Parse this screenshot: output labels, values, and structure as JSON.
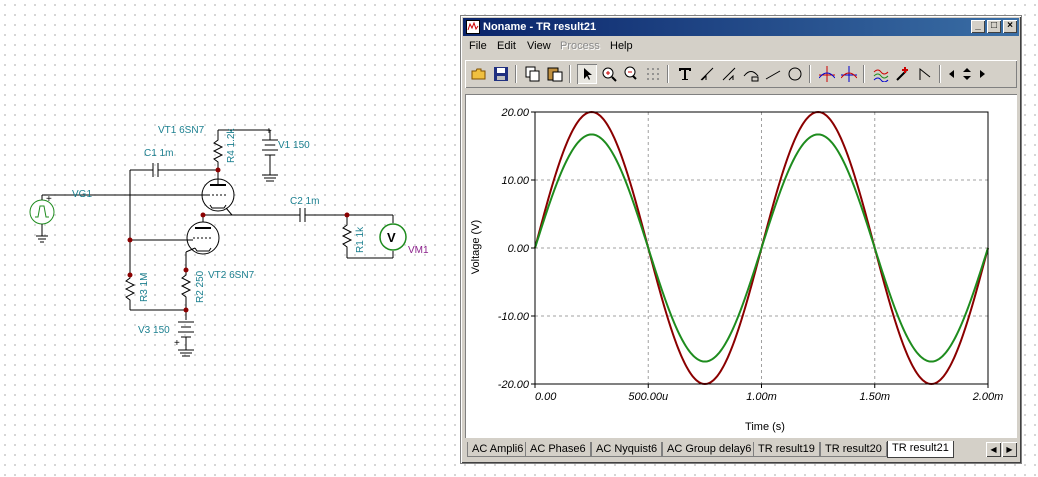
{
  "schematic": {
    "labels": {
      "vt1": "VT1 6SN7",
      "r4": "R4 1.2k",
      "v1": "V1 150",
      "c1": "C1 1m",
      "vg1": "VG1",
      "c2": "C2 1m",
      "r1": "R1 1k",
      "vm1": "VM1",
      "r3": "R3 1M",
      "r2": "R2 250",
      "vt2": "VT2 6SN7",
      "v3": "V3 150"
    },
    "plus_sign": "+",
    "meter_symbol": "V"
  },
  "window": {
    "title": "Noname - TR result21",
    "controls": {
      "minimize": "_",
      "maximize": "□",
      "close": "×"
    },
    "menu": [
      {
        "label": "File",
        "enabled": true
      },
      {
        "label": "Edit",
        "enabled": true
      },
      {
        "label": "View",
        "enabled": true
      },
      {
        "label": "Process",
        "enabled": false
      },
      {
        "label": "Help",
        "enabled": true
      }
    ],
    "toolbar": [
      "open-folder-icon",
      "save-icon",
      "copy-icon",
      "paste-icon",
      "pointer-icon",
      "zoom-in-icon",
      "zoom-100-icon",
      "grid-icon",
      "text-icon",
      "cursor-tool-a-icon",
      "cursor-tool-b-icon",
      "measure-icon",
      "line-icon",
      "circle-icon",
      "cursor-a-icon",
      "cursor-b-icon",
      "curves-icon",
      "probe-icon",
      "marker-icon",
      "nav-left-icon",
      "nav-updown-icon",
      "nav-right-icon"
    ]
  },
  "chart_data": {
    "type": "line",
    "xlabel": "Time (s)",
    "ylabel": "Voltage (V)",
    "xlim": [
      0,
      0.002
    ],
    "ylim": [
      -20,
      20
    ],
    "x_ticks": [
      "0.00",
      "500.00u",
      "1.00m",
      "1.50m",
      "2.00m"
    ],
    "y_ticks": [
      "20.00",
      "10.00",
      "0.00",
      "-10.00",
      "-20.00"
    ],
    "grid": true,
    "series": [
      {
        "color": "#8b0000",
        "amplitude": 20,
        "frequency_hz": 1000,
        "phase": 0
      },
      {
        "color": "#1e8c1e",
        "amplitude": 16.7,
        "frequency_hz": 1000,
        "phase": 0,
        "negative_peak": -16.7
      }
    ]
  },
  "tabs": {
    "items": [
      "AC Ampli6",
      "AC Phase6",
      "AC Nyquist6",
      "AC Group delay6",
      "TR result19",
      "TR result20",
      "TR result21"
    ],
    "active_index": 6
  }
}
